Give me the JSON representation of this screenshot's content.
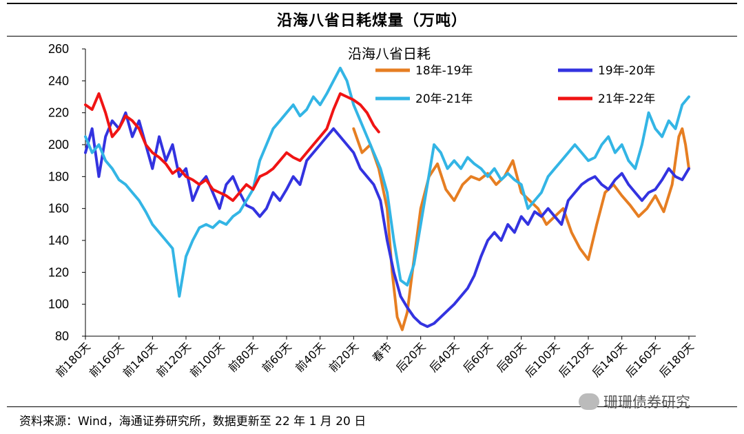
{
  "header": {
    "title": "沿海八省日耗煤量（万吨）"
  },
  "footer": {
    "source": "资料来源：Wind，海通证券研究所，数据更新至 22 年 1 月 20 日"
  },
  "watermark": {
    "text": "珊珊债券研究",
    "icon": "wechat-icon"
  },
  "chart_data": {
    "type": "line",
    "title": "沿海八省日耗",
    "ylim": [
      80,
      260
    ],
    "yticks": [
      80,
      100,
      120,
      140,
      160,
      180,
      200,
      220,
      240,
      260
    ],
    "xlim": [
      -180,
      180
    ],
    "xtick_values": [
      -180,
      -160,
      -140,
      -120,
      -100,
      -80,
      -60,
      -40,
      -20,
      0,
      20,
      40,
      60,
      80,
      100,
      120,
      140,
      160,
      180
    ],
    "xtick_labels": [
      "前180天",
      "前160天",
      "前140天",
      "前120天",
      "前100天",
      "前80天",
      "前60天",
      "前40天",
      "前20天",
      "春节",
      "后20天",
      "后40天",
      "后60天",
      "后80天",
      "后100天",
      "后120天",
      "后140天",
      "后160天",
      "后180天"
    ],
    "xlabel": "",
    "ylabel": "",
    "grid": false,
    "legend_position": "top-center",
    "series": [
      {
        "name": "18年-19年",
        "color": "#E67E22",
        "points": [
          [
            -20,
            210
          ],
          [
            -15,
            195
          ],
          [
            -10,
            200
          ],
          [
            -5,
            185
          ],
          [
            0,
            160
          ],
          [
            3,
            120
          ],
          [
            6,
            92
          ],
          [
            9,
            84
          ],
          [
            12,
            95
          ],
          [
            15,
            120
          ],
          [
            20,
            160
          ],
          [
            25,
            180
          ],
          [
            30,
            188
          ],
          [
            35,
            172
          ],
          [
            40,
            165
          ],
          [
            45,
            175
          ],
          [
            50,
            180
          ],
          [
            55,
            178
          ],
          [
            60,
            182
          ],
          [
            65,
            175
          ],
          [
            70,
            180
          ],
          [
            75,
            190
          ],
          [
            80,
            170
          ],
          [
            85,
            165
          ],
          [
            90,
            160
          ],
          [
            95,
            150
          ],
          [
            100,
            155
          ],
          [
            105,
            160
          ],
          [
            110,
            145
          ],
          [
            115,
            135
          ],
          [
            120,
            128
          ],
          [
            125,
            150
          ],
          [
            130,
            170
          ],
          [
            135,
            175
          ],
          [
            140,
            168
          ],
          [
            145,
            162
          ],
          [
            150,
            155
          ],
          [
            155,
            160
          ],
          [
            160,
            168
          ],
          [
            165,
            158
          ],
          [
            170,
            175
          ],
          [
            172,
            190
          ],
          [
            174,
            205
          ],
          [
            176,
            210
          ],
          [
            178,
            200
          ],
          [
            180,
            185
          ]
        ]
      },
      {
        "name": "19年-20年",
        "color": "#3333E0",
        "points": [
          [
            -180,
            195
          ],
          [
            -176,
            210
          ],
          [
            -172,
            180
          ],
          [
            -168,
            205
          ],
          [
            -164,
            215
          ],
          [
            -160,
            210
          ],
          [
            -156,
            220
          ],
          [
            -152,
            205
          ],
          [
            -148,
            215
          ],
          [
            -144,
            200
          ],
          [
            -140,
            185
          ],
          [
            -136,
            205
          ],
          [
            -132,
            190
          ],
          [
            -128,
            200
          ],
          [
            -124,
            180
          ],
          [
            -120,
            185
          ],
          [
            -116,
            165
          ],
          [
            -112,
            175
          ],
          [
            -108,
            180
          ],
          [
            -104,
            170
          ],
          [
            -100,
            160
          ],
          [
            -96,
            175
          ],
          [
            -92,
            180
          ],
          [
            -88,
            170
          ],
          [
            -84,
            162
          ],
          [
            -80,
            160
          ],
          [
            -76,
            155
          ],
          [
            -72,
            160
          ],
          [
            -68,
            170
          ],
          [
            -64,
            165
          ],
          [
            -60,
            172
          ],
          [
            -56,
            180
          ],
          [
            -52,
            175
          ],
          [
            -48,
            190
          ],
          [
            -44,
            195
          ],
          [
            -40,
            200
          ],
          [
            -36,
            205
          ],
          [
            -32,
            210
          ],
          [
            -28,
            205
          ],
          [
            -24,
            200
          ],
          [
            -20,
            195
          ],
          [
            -16,
            185
          ],
          [
            -12,
            180
          ],
          [
            -8,
            175
          ],
          [
            -4,
            165
          ],
          [
            0,
            140
          ],
          [
            4,
            120
          ],
          [
            8,
            105
          ],
          [
            12,
            98
          ],
          [
            16,
            92
          ],
          [
            20,
            88
          ],
          [
            24,
            86
          ],
          [
            28,
            88
          ],
          [
            32,
            92
          ],
          [
            36,
            96
          ],
          [
            40,
            100
          ],
          [
            44,
            105
          ],
          [
            48,
            110
          ],
          [
            52,
            118
          ],
          [
            56,
            130
          ],
          [
            60,
            140
          ],
          [
            64,
            145
          ],
          [
            68,
            140
          ],
          [
            72,
            150
          ],
          [
            76,
            145
          ],
          [
            80,
            155
          ],
          [
            84,
            150
          ],
          [
            88,
            158
          ],
          [
            92,
            155
          ],
          [
            96,
            160
          ],
          [
            100,
            155
          ],
          [
            104,
            150
          ],
          [
            108,
            165
          ],
          [
            112,
            170
          ],
          [
            116,
            175
          ],
          [
            120,
            178
          ],
          [
            124,
            180
          ],
          [
            128,
            175
          ],
          [
            132,
            172
          ],
          [
            136,
            178
          ],
          [
            140,
            182
          ],
          [
            144,
            175
          ],
          [
            148,
            170
          ],
          [
            152,
            165
          ],
          [
            156,
            170
          ],
          [
            160,
            172
          ],
          [
            164,
            178
          ],
          [
            168,
            185
          ],
          [
            172,
            180
          ],
          [
            176,
            178
          ],
          [
            180,
            185
          ]
        ]
      },
      {
        "name": "20年-21年",
        "color": "#33B5E5",
        "points": [
          [
            -180,
            205
          ],
          [
            -176,
            195
          ],
          [
            -172,
            200
          ],
          [
            -168,
            190
          ],
          [
            -164,
            185
          ],
          [
            -160,
            178
          ],
          [
            -156,
            175
          ],
          [
            -152,
            170
          ],
          [
            -148,
            165
          ],
          [
            -144,
            158
          ],
          [
            -140,
            150
          ],
          [
            -136,
            145
          ],
          [
            -132,
            140
          ],
          [
            -128,
            135
          ],
          [
            -124,
            105
          ],
          [
            -120,
            130
          ],
          [
            -116,
            140
          ],
          [
            -112,
            148
          ],
          [
            -108,
            150
          ],
          [
            -104,
            148
          ],
          [
            -100,
            152
          ],
          [
            -96,
            150
          ],
          [
            -92,
            155
          ],
          [
            -88,
            158
          ],
          [
            -84,
            165
          ],
          [
            -80,
            172
          ],
          [
            -76,
            190
          ],
          [
            -72,
            200
          ],
          [
            -68,
            210
          ],
          [
            -64,
            215
          ],
          [
            -60,
            220
          ],
          [
            -56,
            225
          ],
          [
            -52,
            218
          ],
          [
            -48,
            222
          ],
          [
            -44,
            230
          ],
          [
            -40,
            225
          ],
          [
            -36,
            232
          ],
          [
            -32,
            240
          ],
          [
            -28,
            248
          ],
          [
            -24,
            240
          ],
          [
            -20,
            225
          ],
          [
            -16,
            215
          ],
          [
            -12,
            205
          ],
          [
            -8,
            195
          ],
          [
            -4,
            185
          ],
          [
            0,
            170
          ],
          [
            4,
            140
          ],
          [
            8,
            115
          ],
          [
            12,
            112
          ],
          [
            16,
            125
          ],
          [
            20,
            150
          ],
          [
            24,
            175
          ],
          [
            28,
            200
          ],
          [
            32,
            195
          ],
          [
            36,
            185
          ],
          [
            40,
            190
          ],
          [
            44,
            185
          ],
          [
            48,
            192
          ],
          [
            52,
            188
          ],
          [
            56,
            185
          ],
          [
            60,
            180
          ],
          [
            64,
            185
          ],
          [
            68,
            178
          ],
          [
            72,
            182
          ],
          [
            76,
            178
          ],
          [
            80,
            175
          ],
          [
            84,
            160
          ],
          [
            88,
            165
          ],
          [
            92,
            170
          ],
          [
            96,
            180
          ],
          [
            100,
            185
          ],
          [
            104,
            190
          ],
          [
            108,
            195
          ],
          [
            112,
            200
          ],
          [
            116,
            195
          ],
          [
            120,
            190
          ],
          [
            124,
            192
          ],
          [
            128,
            200
          ],
          [
            132,
            205
          ],
          [
            136,
            195
          ],
          [
            140,
            200
          ],
          [
            144,
            190
          ],
          [
            148,
            185
          ],
          [
            152,
            200
          ],
          [
            156,
            220
          ],
          [
            160,
            210
          ],
          [
            164,
            205
          ],
          [
            168,
            215
          ],
          [
            172,
            210
          ],
          [
            176,
            225
          ],
          [
            180,
            230
          ]
        ]
      },
      {
        "name": "21年-22年",
        "color": "#F01414",
        "points": [
          [
            -180,
            225
          ],
          [
            -176,
            222
          ],
          [
            -172,
            232
          ],
          [
            -168,
            220
          ],
          [
            -164,
            205
          ],
          [
            -160,
            210
          ],
          [
            -156,
            218
          ],
          [
            -152,
            215
          ],
          [
            -148,
            210
          ],
          [
            -144,
            200
          ],
          [
            -140,
            195
          ],
          [
            -136,
            192
          ],
          [
            -132,
            188
          ],
          [
            -128,
            182
          ],
          [
            -124,
            185
          ],
          [
            -120,
            180
          ],
          [
            -116,
            178
          ],
          [
            -112,
            175
          ],
          [
            -108,
            178
          ],
          [
            -104,
            172
          ],
          [
            -100,
            170
          ],
          [
            -96,
            168
          ],
          [
            -92,
            165
          ],
          [
            -88,
            170
          ],
          [
            -84,
            175
          ],
          [
            -80,
            172
          ],
          [
            -76,
            180
          ],
          [
            -72,
            182
          ],
          [
            -68,
            185
          ],
          [
            -64,
            190
          ],
          [
            -60,
            195
          ],
          [
            -56,
            192
          ],
          [
            -52,
            190
          ],
          [
            -48,
            195
          ],
          [
            -44,
            200
          ],
          [
            -40,
            205
          ],
          [
            -36,
            210
          ],
          [
            -32,
            222
          ],
          [
            -28,
            232
          ],
          [
            -24,
            230
          ],
          [
            -20,
            228
          ],
          [
            -16,
            225
          ],
          [
            -12,
            220
          ],
          [
            -8,
            212
          ],
          [
            -5,
            208
          ]
        ]
      }
    ]
  }
}
